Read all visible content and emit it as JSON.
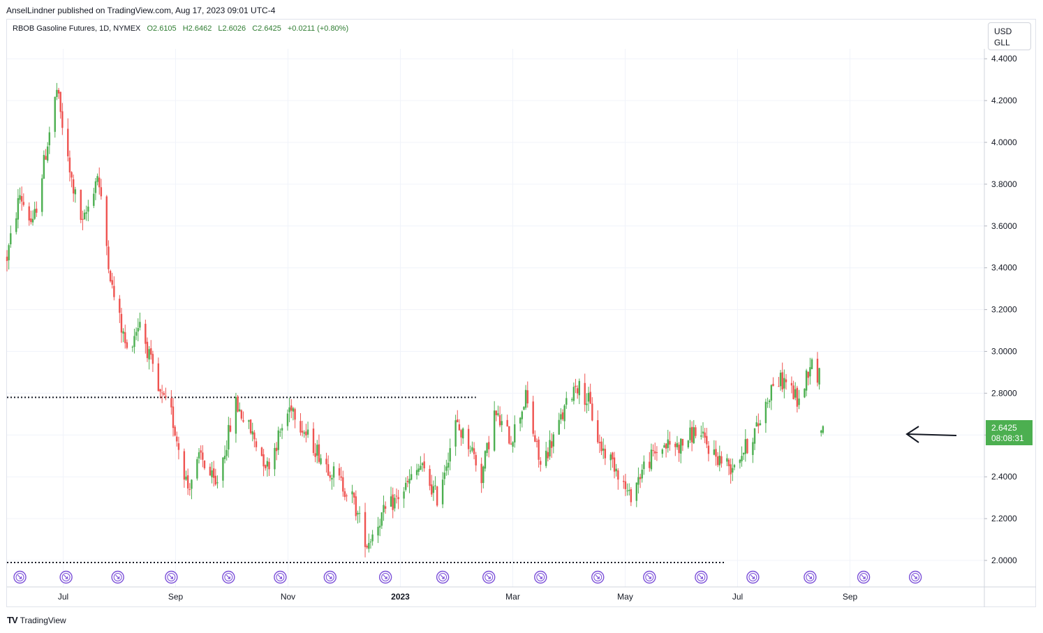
{
  "publisher": "AnselLindner published on TradingView.com, Aug 17, 2023 09:01 UTC-4",
  "footer": {
    "logo_text": "TV",
    "brand": "TradingView"
  },
  "legend": {
    "symbol": "RBOB Gasoline Futures, 1D, NYMEX",
    "open": "O2.6105",
    "high": "H2.6462",
    "low": "L2.6026",
    "close": "C2.6425",
    "change": "+0.0211 (+0.80%)"
  },
  "currency": {
    "line1": "USD",
    "line2": "GLL"
  },
  "price_tag": {
    "value": "2.6425",
    "countdown": "08:08:31"
  },
  "colors": {
    "up": "#26a69a",
    "up_green": "#4caf50",
    "down": "#ef5350",
    "accent": "#4caf50",
    "event": "#7b4fd8"
  },
  "chart_data": {
    "type": "candlestick",
    "ylim": [
      1.9,
      4.5
    ],
    "y_ticks": [
      "4.4000",
      "4.2000",
      "4.0000",
      "3.8000",
      "3.6000",
      "3.4000",
      "3.2000",
      "3.0000",
      "2.8000",
      "2.6000",
      "2.4000",
      "2.2000",
      "2.0000"
    ],
    "x_ticks": [
      {
        "label": "Jul",
        "bold": false,
        "month": 1
      },
      {
        "label": "Sep",
        "bold": false,
        "month": 3
      },
      {
        "label": "Nov",
        "bold": false,
        "month": 5
      },
      {
        "label": "2023",
        "bold": true,
        "month": 7
      },
      {
        "label": "Mar",
        "bold": false,
        "month": 9
      },
      {
        "label": "May",
        "bold": false,
        "month": 11
      },
      {
        "label": "Jul",
        "bold": false,
        "month": 13
      },
      {
        "label": "Sep",
        "bold": false,
        "month": 15
      }
    ],
    "start": "2022-06-01",
    "horizontal_lines": [
      {
        "price": 2.78,
        "from": "2022-06-01",
        "to": "2023-02-10",
        "style": "dotted"
      },
      {
        "price": 1.99,
        "from": "2022-06-01",
        "to": "2023-06-25",
        "style": "dotted"
      }
    ],
    "anchors": [
      [
        "2022-06-01",
        3.45
      ],
      [
        "2022-06-08",
        3.75
      ],
      [
        "2022-06-15",
        3.6
      ],
      [
        "2022-06-28",
        4.25
      ],
      [
        "2022-07-05",
        3.85
      ],
      [
        "2022-07-12",
        3.6
      ],
      [
        "2022-07-20",
        3.85
      ],
      [
        "2022-07-28",
        3.3
      ],
      [
        "2022-08-05",
        3.0
      ],
      [
        "2022-08-12",
        3.15
      ],
      [
        "2022-08-22",
        2.8
      ],
      [
        "2022-08-29",
        2.7
      ],
      [
        "2022-09-07",
        2.35
      ],
      [
        "2022-09-14",
        2.5
      ],
      [
        "2022-09-22",
        2.35
      ],
      [
        "2022-10-03",
        2.75
      ],
      [
        "2022-10-12",
        2.6
      ],
      [
        "2022-10-20",
        2.45
      ],
      [
        "2022-11-02",
        2.75
      ],
      [
        "2022-11-10",
        2.6
      ],
      [
        "2022-11-22",
        2.45
      ],
      [
        "2022-12-05",
        2.3
      ],
      [
        "2022-12-13",
        2.08
      ],
      [
        "2022-12-20",
        2.2
      ],
      [
        "2023-01-03",
        2.35
      ],
      [
        "2023-01-11",
        2.45
      ],
      [
        "2023-01-20",
        2.3
      ],
      [
        "2023-01-30",
        2.65
      ],
      [
        "2023-02-07",
        2.55
      ],
      [
        "2023-02-13",
        2.4
      ],
      [
        "2023-02-20",
        2.7
      ],
      [
        "2023-03-01",
        2.58
      ],
      [
        "2023-03-09",
        2.78
      ],
      [
        "2023-03-17",
        2.45
      ],
      [
        "2023-03-27",
        2.65
      ],
      [
        "2023-04-05",
        2.85
      ],
      [
        "2023-04-12",
        2.76
      ],
      [
        "2023-04-18",
        2.55
      ],
      [
        "2023-04-27",
        2.45
      ],
      [
        "2023-05-04",
        2.3
      ],
      [
        "2023-05-12",
        2.45
      ],
      [
        "2023-05-22",
        2.55
      ],
      [
        "2023-06-01",
        2.55
      ],
      [
        "2023-06-09",
        2.62
      ],
      [
        "2023-06-20",
        2.5
      ],
      [
        "2023-06-28",
        2.45
      ],
      [
        "2023-07-07",
        2.55
      ],
      [
        "2023-07-13",
        2.65
      ],
      [
        "2023-07-21",
        2.85
      ],
      [
        "2023-07-28",
        2.86
      ],
      [
        "2023-08-04",
        2.75
      ],
      [
        "2023-08-10",
        2.95
      ],
      [
        "2023-08-15",
        2.88
      ]
    ],
    "last_candle": {
      "date": "2023-08-17",
      "open": 2.6105,
      "high": 2.6462,
      "low": 2.6026,
      "close": 2.6425
    },
    "events": [
      "2022-06-08",
      "2022-07-03",
      "2022-07-31",
      "2022-08-29",
      "2022-09-29",
      "2022-10-27",
      "2022-11-23",
      "2022-12-23",
      "2023-01-23",
      "2023-02-17",
      "2023-03-17",
      "2023-04-17",
      "2023-05-15",
      "2023-06-12",
      "2023-07-10",
      "2023-08-10",
      "2023-09-08",
      "2023-10-06"
    ],
    "annotation": {
      "type": "arrow",
      "points_to": "2023-08-17",
      "price": 2.62
    }
  }
}
